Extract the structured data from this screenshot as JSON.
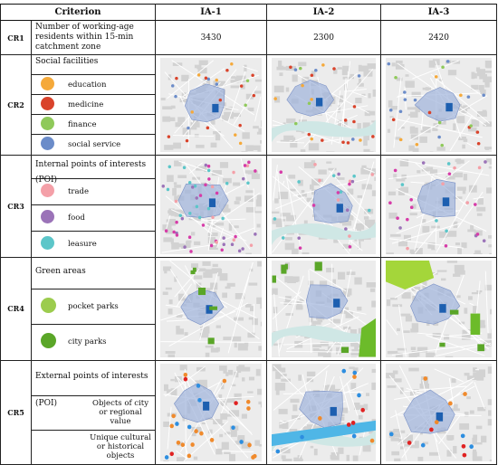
{
  "header": {
    "criterion": "Criterion",
    "ia1": "IA-1",
    "ia2": "IA-2",
    "ia3": "IA-3"
  },
  "cr1": {
    "code": "CR1",
    "label": "Number of working-age residents within 15-min catchment zone",
    "values": [
      "3430",
      "2300",
      "2420"
    ]
  },
  "cr2": {
    "code": "CR2",
    "title": "Social facilities",
    "items": [
      {
        "label": "education",
        "color": "#f5a93a"
      },
      {
        "label": "medicine",
        "color": "#d9432b"
      },
      {
        "label": "finance",
        "color": "#8fc95a"
      },
      {
        "label": "social service",
        "color": "#6b8cc9"
      }
    ]
  },
  "cr3": {
    "code": "CR3",
    "title": "Internal points of interests (POI)",
    "items": [
      {
        "label": "trade",
        "color": "#f4a0a8"
      },
      {
        "label": "food",
        "color": "#9b73b8"
      },
      {
        "label": "leasure",
        "color": "#5cc6c9"
      }
    ]
  },
  "cr4": {
    "code": "CR4",
    "title": "Green areas",
    "items": [
      {
        "label": "pocket parks",
        "color": "#9ccc4e"
      },
      {
        "label": "city parks",
        "color": "#5aa628"
      }
    ]
  },
  "cr5": {
    "code": "CR5",
    "title": "External points of interests (POI)",
    "items": [
      {
        "label": "Objects of city or regional value"
      },
      {
        "label": "Unique cultural or historical objects"
      }
    ]
  }
}
